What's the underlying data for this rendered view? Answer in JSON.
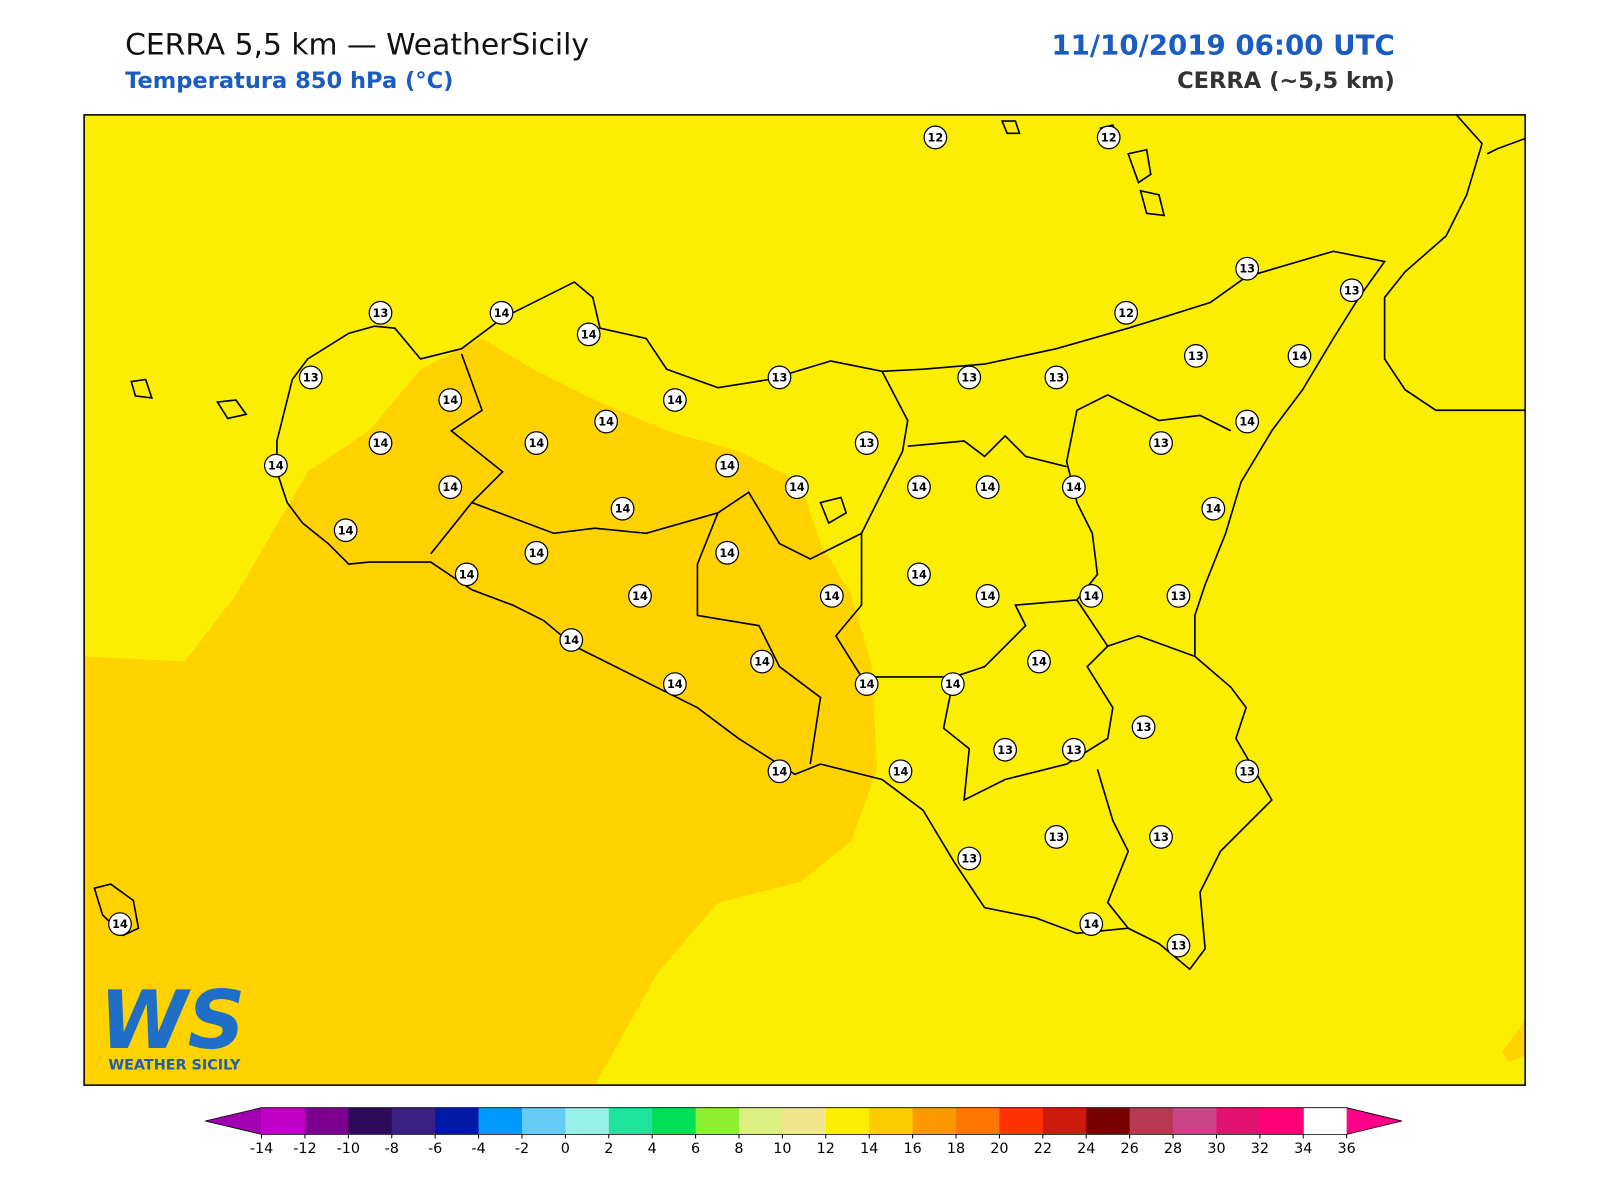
{
  "header": {
    "title": "CERRA 5,5 km — WeatherSicily",
    "subtitle": "Temperatura 850 hPa (°C)",
    "date": "11/10/2019 06:00 UTC",
    "model": "CERRA (~5,5 km)"
  },
  "map": {
    "background_color": "#fcee00",
    "warm_region_color": "#ffd200"
  },
  "stations": [
    12,
    12,
    13,
    13,
    13,
    14,
    14,
    12,
    13,
    13,
    13,
    13,
    13,
    14,
    14,
    14,
    14,
    14,
    14,
    14,
    13,
    13,
    14,
    14,
    14,
    14,
    14,
    14,
    14,
    14,
    14,
    14,
    14,
    14,
    14,
    14,
    14,
    14,
    14,
    14,
    13,
    14,
    14,
    14,
    14,
    14,
    14,
    13,
    13,
    13,
    14,
    14,
    13,
    13,
    13,
    13,
    14,
    13,
    14
  ],
  "colorbar": {
    "ticks": [
      -14,
      -12,
      -10,
      -8,
      -6,
      -4,
      -2,
      0,
      2,
      4,
      6,
      8,
      10,
      12,
      14,
      16,
      18,
      20,
      22,
      24,
      26,
      28,
      30,
      32,
      34,
      36
    ],
    "colors": [
      "#c000c8",
      "#7b0090",
      "#2d0a5a",
      "#3a2080",
      "#0018a8",
      "#0099ff",
      "#66ccf5",
      "#99f0e6",
      "#1ee39a",
      "#00e055",
      "#8cef32",
      "#dcf082",
      "#f0e68c",
      "#fcee00",
      "#ffcc00",
      "#ff9900",
      "#ff7700",
      "#ff3300",
      "#cc1a0f",
      "#7a0000",
      "#b83a52",
      "#cc4488",
      "#e31170",
      "#ff0077"
    ],
    "under_color": "#a000b0",
    "over_color": "#ff0088"
  },
  "logo": {
    "mark": "WS",
    "text": "WEATHER SICILY"
  }
}
